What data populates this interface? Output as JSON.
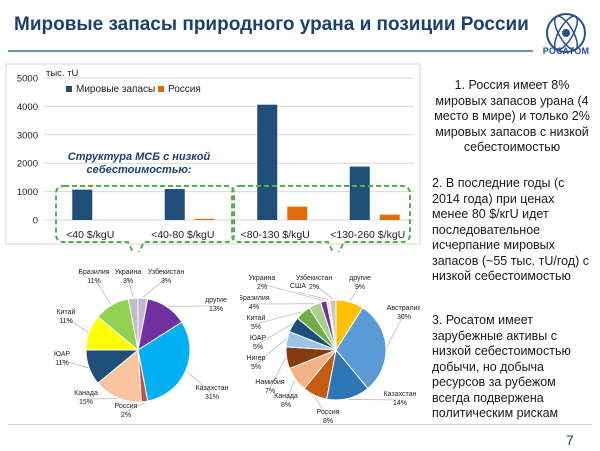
{
  "title": "Мировые запасы природного урана и позиции России",
  "logo_text": "РОСАТОМ",
  "page_number": "7",
  "msb_label": "Структура МСБ с низкой себестоимостью:",
  "callouts": {
    "p1": "1. Россия имеет 8% мировых запасов урана (4 место в мире) и только 2% мировых запасов с низкой себестоимостью",
    "p2": "2. В последние годы (с 2014 года) при ценах менее 80 $/кгU идет последовательное исчерпание мировых запасов (~55 тыс. тU/год) с низкой себестоимостью",
    "p3": "3. Росатом имеет зарубежные активы с низкой себестоимостью добычи, но добыча ресурсов за рубежом всегда подвержена политическим рискам"
  },
  "colors": {
    "world": "#1f4e79",
    "russia": "#e36c0a",
    "title": "#1f3f6e",
    "dash": "#4caf50"
  },
  "chart_data": [
    {
      "type": "bar",
      "unit_label": "тыс. тU",
      "categories": [
        "<40 $/kgU",
        "<40-80 $/kgU",
        "<80-130 $/kgU",
        "<130-260 $/kgU"
      ],
      "series": [
        {
          "name": "Мировые запасы",
          "values": [
            1070,
            1090,
            4060,
            1880
          ]
        },
        {
          "name": "Россия",
          "values": [
            0,
            40,
            470,
            190
          ]
        }
      ],
      "ylim": [
        0,
        5000
      ],
      "yticks": [
        0,
        1000,
        2000,
        3000,
        4000,
        5000
      ],
      "legend": "top-left"
    },
    {
      "type": "pie",
      "slices": [
        {
          "label": "Узбекистан",
          "pct": "3%",
          "value": 3,
          "color": "#c6b6d8"
        },
        {
          "label": "другие",
          "pct": "13%",
          "value": 13,
          "color": "#7030a0"
        },
        {
          "label": "Казахстан",
          "pct": "31%",
          "value": 31,
          "color": "#00b0f0"
        },
        {
          "label": "Россия",
          "pct": "2%",
          "value": 2,
          "color": "#c0504d"
        },
        {
          "label": "Канада",
          "pct": "15%",
          "value": 15,
          "color": "#f9c49f"
        },
        {
          "label": "ЮАР",
          "pct": "11%",
          "value": 11,
          "color": "#1f4e79"
        },
        {
          "label": "Китай",
          "pct": "11%",
          "value": 11,
          "color": "#ffff00"
        },
        {
          "label": "Бразилия",
          "pct": "11%",
          "value": 11,
          "color": "#92d050"
        },
        {
          "label": "Украина",
          "pct": "3%",
          "value": 3,
          "color": "#bfbfbf"
        }
      ]
    },
    {
      "type": "pie",
      "slices": [
        {
          "label": "другие",
          "pct": "9%",
          "value": 9,
          "color": "#ffc000"
        },
        {
          "label": "Австралия",
          "pct": "30%",
          "value": 30,
          "color": "#5b9bd5"
        },
        {
          "label": "Казахстан",
          "pct": "14%",
          "value": 14,
          "color": "#2e75b6"
        },
        {
          "label": "Россия",
          "pct": "8%",
          "value": 8,
          "color": "#c55a11"
        },
        {
          "label": "Канада",
          "pct": "8%",
          "value": 8,
          "color": "#f4b183"
        },
        {
          "label": "Намибия",
          "pct": "7%",
          "value": 7,
          "color": "#843c0c"
        },
        {
          "label": "Нигер",
          "pct": "5%",
          "value": 5,
          "color": "#9dc3e6"
        },
        {
          "label": "ЮАР",
          "pct": "5%",
          "value": 5,
          "color": "#1f4e79"
        },
        {
          "label": "Китай",
          "pct": "5%",
          "value": 5,
          "color": "#70ad47"
        },
        {
          "label": "Бразилия",
          "pct": "4%",
          "value": 4,
          "color": "#a9d18e"
        },
        {
          "label": "Украина",
          "pct": "2%",
          "value": 2,
          "color": "#7030a0"
        },
        {
          "label": "США",
          "pct": "",
          "value": 1,
          "color": "#ffe699"
        },
        {
          "label": "Узбекистан",
          "pct": "2%",
          "value": 2,
          "color": "#c9c9c9"
        }
      ]
    }
  ]
}
